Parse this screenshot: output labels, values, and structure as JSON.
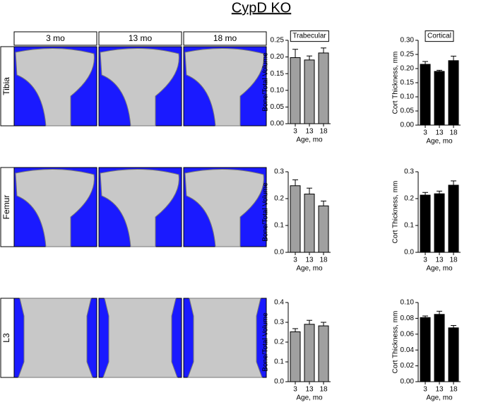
{
  "title": "CypD KO",
  "columns": [
    "3 mo",
    "13 mo",
    "18 mo"
  ],
  "rows": [
    "Tibia",
    "Femur",
    "L3"
  ],
  "chart_data": [
    {
      "type": "bar",
      "title": "Trabecular",
      "ylabel": "Bone/Total Volume",
      "xlabel": "Age, mo",
      "categories": [
        "3",
        "13",
        "18"
      ],
      "values": [
        0.198,
        0.191,
        0.212
      ],
      "errors": [
        0.025,
        0.012,
        0.015
      ],
      "color": "#a0a0a0",
      "ylim": [
        0,
        0.25
      ],
      "yticks": [
        {
          "value": 0,
          "label": "0.00"
        },
        0.05,
        {
          "value": 0.1,
          "label": "0.10"
        },
        0.15,
        {
          "value": 0.2,
          "label": "0.20"
        },
        0.25
      ]
    },
    {
      "type": "bar",
      "title": "Cortical",
      "ylabel": "Cort Thickness, mm",
      "xlabel": "Age, mo",
      "categories": [
        "3",
        "13",
        "18"
      ],
      "values": [
        0.215,
        0.19,
        0.228
      ],
      "errors": [
        0.01,
        0.004,
        0.016
      ],
      "color": "#000000",
      "ylim": [
        0,
        0.3
      ],
      "yticks": [
        {
          "value": 0,
          "label": "0.00"
        },
        0.05,
        {
          "value": 0.1,
          "label": "0.10"
        },
        0.15,
        {
          "value": 0.2,
          "label": "0.20"
        },
        0.25,
        {
          "value": 0.3,
          "label": "0.30"
        }
      ]
    },
    {
      "type": "bar",
      "ylabel": "Bone/Total Volume",
      "xlabel": "Age, mo",
      "categories": [
        "3",
        "13",
        "18"
      ],
      "values": [
        0.248,
        0.217,
        0.173
      ],
      "errors": [
        0.022,
        0.022,
        0.018
      ],
      "color": "#a0a0a0",
      "ylim": [
        0,
        0.3
      ],
      "yticks": [
        {
          "value": 0,
          "label": "0.0"
        },
        0.1,
        0.2,
        0.3
      ]
    },
    {
      "type": "bar",
      "ylabel": "Cort Thickness, mm",
      "xlabel": "Age, mo",
      "categories": [
        "3",
        "13",
        "18"
      ],
      "values": [
        0.213,
        0.218,
        0.25
      ],
      "errors": [
        0.01,
        0.01,
        0.016
      ],
      "color": "#000000",
      "ylim": [
        0,
        0.3
      ],
      "yticks": [
        {
          "value": 0,
          "label": "0.0"
        },
        0.1,
        0.2,
        0.3
      ]
    },
    {
      "type": "bar",
      "ylabel": "Bone/Total Volume",
      "xlabel": "Age, mo",
      "categories": [
        "3",
        "13",
        "18"
      ],
      "values": [
        0.252,
        0.29,
        0.282
      ],
      "errors": [
        0.016,
        0.02,
        0.018
      ],
      "color": "#a0a0a0",
      "ylim": [
        0,
        0.4
      ],
      "yticks": [
        {
          "value": 0,
          "label": "0.0"
        },
        0.1,
        0.2,
        0.3,
        0.4
      ]
    },
    {
      "type": "bar",
      "ylabel": "Cort Thickness, mm",
      "xlabel": "Age, mo",
      "categories": [
        "3",
        "13",
        "18"
      ],
      "values": [
        0.081,
        0.085,
        0.068
      ],
      "errors": [
        0.002,
        0.004,
        0.003
      ],
      "color": "#000000",
      "ylim": [
        0,
        0.1
      ],
      "yticks": [
        {
          "value": 0,
          "label": "0.00"
        },
        {
          "value": 0.02,
          "label": "0.02"
        },
        {
          "value": 0.04,
          "label": "0.04"
        },
        {
          "value": 0.06,
          "label": "0.06"
        },
        {
          "value": 0.08,
          "label": "0.08"
        },
        {
          "value": 0.1,
          "label": "0.10"
        }
      ]
    }
  ]
}
